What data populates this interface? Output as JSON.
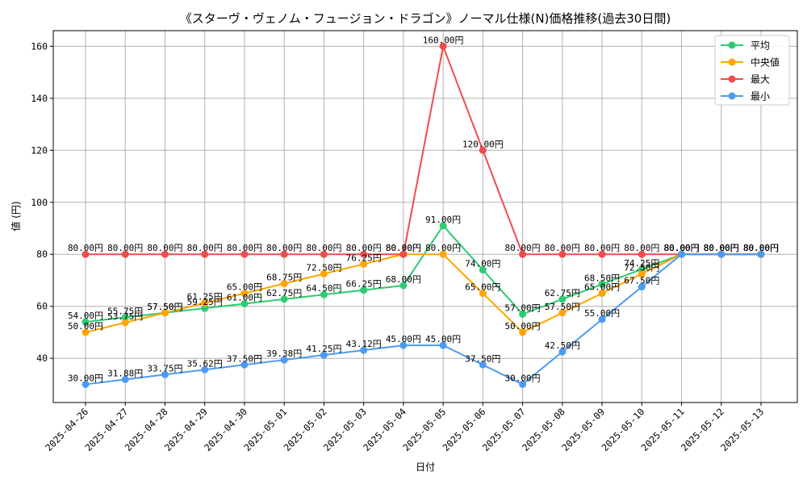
{
  "chart_data": {
    "type": "line",
    "title": "《スターヴ・ヴェノム・フュージョン・ドラゴン》ノーマル仕様(N)価格推移(過去30日間)",
    "xlabel": "日付",
    "ylabel": "値 (円)",
    "ylim": [
      23,
      166
    ],
    "yticks": [
      40,
      60,
      80,
      100,
      120,
      140,
      160
    ],
    "grid": true,
    "legend_position": "top-right",
    "label_suffix": "円",
    "categories": [
      "2025-04-26",
      "2025-04-27",
      "2025-04-28",
      "2025-04-29",
      "2025-04-30",
      "2025-05-01",
      "2025-05-02",
      "2025-05-03",
      "2025-05-04",
      "2025-05-05",
      "2025-05-06",
      "2025-05-07",
      "2025-05-08",
      "2025-05-09",
      "2025-05-10",
      "2025-05-11",
      "2025-05-12",
      "2025-05-13"
    ],
    "series": [
      {
        "name": "平均",
        "color": "#2ecc71",
        "values": [
          54.0,
          55.75,
          57.5,
          59.25,
          61.0,
          62.75,
          64.5,
          66.25,
          68.0,
          91.0,
          74.0,
          57.0,
          62.75,
          68.5,
          74.25,
          80.0,
          80.0,
          80.0
        ]
      },
      {
        "name": "中央値",
        "color": "#ffa500",
        "values": [
          50.0,
          53.75,
          57.5,
          61.25,
          65.0,
          68.75,
          72.5,
          76.25,
          80.0,
          80.0,
          65.0,
          50.0,
          57.5,
          65.0,
          72.5,
          80.0,
          80.0,
          80.0
        ]
      },
      {
        "name": "最大",
        "color": "#f04c4c",
        "values": [
          80.0,
          80.0,
          80.0,
          80.0,
          80.0,
          80.0,
          80.0,
          80.0,
          80.0,
          160.0,
          120.0,
          80.0,
          80.0,
          80.0,
          80.0,
          80.0,
          80.0,
          80.0
        ]
      },
      {
        "name": "最小",
        "color": "#4d9bf0",
        "values": [
          30.0,
          31.88,
          33.75,
          35.62,
          37.5,
          39.38,
          41.25,
          43.12,
          45.0,
          45.0,
          37.5,
          30.0,
          42.5,
          55.0,
          67.5,
          80.0,
          80.0,
          80.0
        ]
      }
    ]
  }
}
